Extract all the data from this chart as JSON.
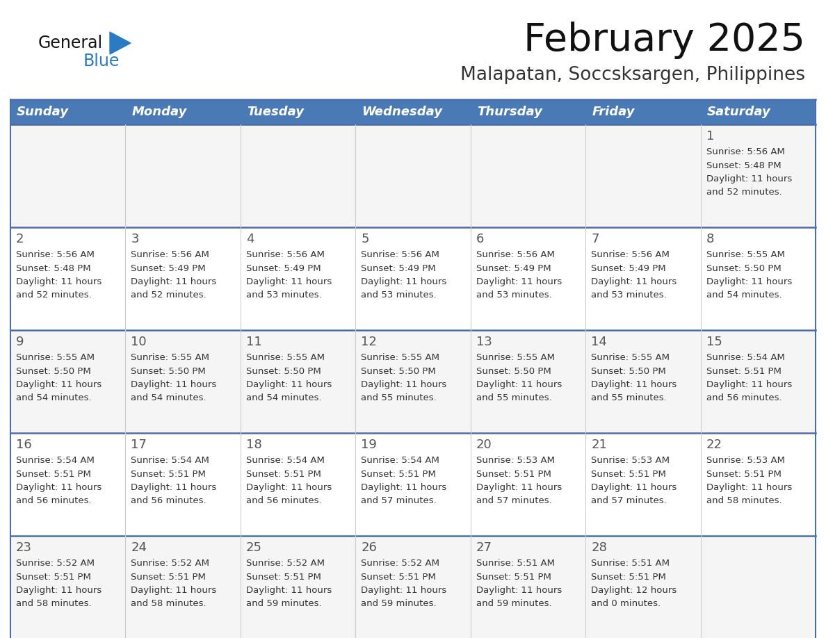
{
  "title": "February 2025",
  "subtitle": "Malapatan, Soccsksargen, Philippines",
  "header_bg": "#4a7ab5",
  "header_text": "#ffffff",
  "day_names": [
    "Sunday",
    "Monday",
    "Tuesday",
    "Wednesday",
    "Thursday",
    "Friday",
    "Saturday"
  ],
  "row_bg_even": "#f5f5f5",
  "row_bg_odd": "#ffffff",
  "row_border_color": "#4a6fa8",
  "col_border_color": "#cccccc",
  "number_color": "#555555",
  "text_color": "#333333",
  "logo_general_color": "#111111",
  "logo_blue_color": "#2b7bc4",
  "title_color": "#111111",
  "subtitle_color": "#333333",
  "calendar_data": [
    [
      {
        "day": null,
        "sunrise": null,
        "sunset": null,
        "daylight": null
      },
      {
        "day": null,
        "sunrise": null,
        "sunset": null,
        "daylight": null
      },
      {
        "day": null,
        "sunrise": null,
        "sunset": null,
        "daylight": null
      },
      {
        "day": null,
        "sunrise": null,
        "sunset": null,
        "daylight": null
      },
      {
        "day": null,
        "sunrise": null,
        "sunset": null,
        "daylight": null
      },
      {
        "day": null,
        "sunrise": null,
        "sunset": null,
        "daylight": null
      },
      {
        "day": 1,
        "sunrise": "5:56 AM",
        "sunset": "5:48 PM",
        "daylight": "11 hours\nand 52 minutes."
      }
    ],
    [
      {
        "day": 2,
        "sunrise": "5:56 AM",
        "sunset": "5:48 PM",
        "daylight": "11 hours\nand 52 minutes."
      },
      {
        "day": 3,
        "sunrise": "5:56 AM",
        "sunset": "5:49 PM",
        "daylight": "11 hours\nand 52 minutes."
      },
      {
        "day": 4,
        "sunrise": "5:56 AM",
        "sunset": "5:49 PM",
        "daylight": "11 hours\nand 53 minutes."
      },
      {
        "day": 5,
        "sunrise": "5:56 AM",
        "sunset": "5:49 PM",
        "daylight": "11 hours\nand 53 minutes."
      },
      {
        "day": 6,
        "sunrise": "5:56 AM",
        "sunset": "5:49 PM",
        "daylight": "11 hours\nand 53 minutes."
      },
      {
        "day": 7,
        "sunrise": "5:56 AM",
        "sunset": "5:49 PM",
        "daylight": "11 hours\nand 53 minutes."
      },
      {
        "day": 8,
        "sunrise": "5:55 AM",
        "sunset": "5:50 PM",
        "daylight": "11 hours\nand 54 minutes."
      }
    ],
    [
      {
        "day": 9,
        "sunrise": "5:55 AM",
        "sunset": "5:50 PM",
        "daylight": "11 hours\nand 54 minutes."
      },
      {
        "day": 10,
        "sunrise": "5:55 AM",
        "sunset": "5:50 PM",
        "daylight": "11 hours\nand 54 minutes."
      },
      {
        "day": 11,
        "sunrise": "5:55 AM",
        "sunset": "5:50 PM",
        "daylight": "11 hours\nand 54 minutes."
      },
      {
        "day": 12,
        "sunrise": "5:55 AM",
        "sunset": "5:50 PM",
        "daylight": "11 hours\nand 55 minutes."
      },
      {
        "day": 13,
        "sunrise": "5:55 AM",
        "sunset": "5:50 PM",
        "daylight": "11 hours\nand 55 minutes."
      },
      {
        "day": 14,
        "sunrise": "5:55 AM",
        "sunset": "5:50 PM",
        "daylight": "11 hours\nand 55 minutes."
      },
      {
        "day": 15,
        "sunrise": "5:54 AM",
        "sunset": "5:51 PM",
        "daylight": "11 hours\nand 56 minutes."
      }
    ],
    [
      {
        "day": 16,
        "sunrise": "5:54 AM",
        "sunset": "5:51 PM",
        "daylight": "11 hours\nand 56 minutes."
      },
      {
        "day": 17,
        "sunrise": "5:54 AM",
        "sunset": "5:51 PM",
        "daylight": "11 hours\nand 56 minutes."
      },
      {
        "day": 18,
        "sunrise": "5:54 AM",
        "sunset": "5:51 PM",
        "daylight": "11 hours\nand 56 minutes."
      },
      {
        "day": 19,
        "sunrise": "5:54 AM",
        "sunset": "5:51 PM",
        "daylight": "11 hours\nand 57 minutes."
      },
      {
        "day": 20,
        "sunrise": "5:53 AM",
        "sunset": "5:51 PM",
        "daylight": "11 hours\nand 57 minutes."
      },
      {
        "day": 21,
        "sunrise": "5:53 AM",
        "sunset": "5:51 PM",
        "daylight": "11 hours\nand 57 minutes."
      },
      {
        "day": 22,
        "sunrise": "5:53 AM",
        "sunset": "5:51 PM",
        "daylight": "11 hours\nand 58 minutes."
      }
    ],
    [
      {
        "day": 23,
        "sunrise": "5:52 AM",
        "sunset": "5:51 PM",
        "daylight": "11 hours\nand 58 minutes."
      },
      {
        "day": 24,
        "sunrise": "5:52 AM",
        "sunset": "5:51 PM",
        "daylight": "11 hours\nand 58 minutes."
      },
      {
        "day": 25,
        "sunrise": "5:52 AM",
        "sunset": "5:51 PM",
        "daylight": "11 hours\nand 59 minutes."
      },
      {
        "day": 26,
        "sunrise": "5:52 AM",
        "sunset": "5:51 PM",
        "daylight": "11 hours\nand 59 minutes."
      },
      {
        "day": 27,
        "sunrise": "5:51 AM",
        "sunset": "5:51 PM",
        "daylight": "11 hours\nand 59 minutes."
      },
      {
        "day": 28,
        "sunrise": "5:51 AM",
        "sunset": "5:51 PM",
        "daylight": "12 hours\nand 0 minutes."
      },
      {
        "day": null,
        "sunrise": null,
        "sunset": null,
        "daylight": null
      }
    ]
  ]
}
